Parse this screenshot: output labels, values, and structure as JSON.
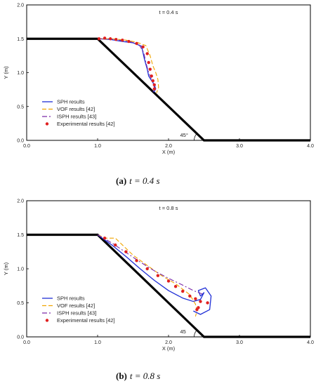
{
  "chart_data": [
    {
      "type": "line",
      "time_label": "t = 0.4 s",
      "caption": {
        "letter": "(a)",
        "text": "t = 0.4 s"
      },
      "xlabel": "X (m)",
      "ylabel": "Y (m)",
      "xlim": [
        0,
        4
      ],
      "ylim": [
        0,
        2
      ],
      "xticks": [
        "0.0",
        "1.0",
        "2.0",
        "3.0",
        "4.0"
      ],
      "yticks": [
        "0.0",
        "0.5",
        "1.0",
        "1.5",
        "2.0"
      ],
      "angle_label": "45°",
      "legend_position": "bottom-left",
      "wall": [
        [
          0,
          1.5
        ],
        [
          1.0,
          1.5
        ],
        [
          2.5,
          0.0
        ],
        [
          4.0,
          0.0
        ]
      ],
      "series": [
        {
          "name": "SPH results",
          "style": "solid",
          "color": "#1f2fd6",
          "x": [
            1.0,
            1.18,
            1.35,
            1.5,
            1.62,
            1.66,
            1.7,
            1.72,
            1.75,
            1.8,
            1.82,
            1.79
          ],
          "y": [
            1.5,
            1.49,
            1.46,
            1.44,
            1.39,
            1.2,
            1.05,
            0.95,
            0.9,
            0.82,
            0.76,
            0.71
          ]
        },
        {
          "name": "VOF results [42]",
          "style": "dash",
          "color": "#f0a500",
          "x": [
            1.02,
            1.2,
            1.4,
            1.55,
            1.68,
            1.74,
            1.78,
            1.82,
            1.85,
            1.86,
            1.83
          ],
          "y": [
            1.5,
            1.5,
            1.48,
            1.45,
            1.4,
            1.25,
            1.1,
            1.0,
            0.9,
            0.78,
            0.7
          ]
        },
        {
          "name": "ISPH results [43]",
          "style": "dashdot",
          "color": "#7a2aa8",
          "x": [
            1.0,
            1.15,
            1.3,
            1.45,
            1.58,
            1.65,
            1.68,
            1.72,
            1.77,
            1.8,
            1.78
          ],
          "y": [
            1.5,
            1.5,
            1.48,
            1.46,
            1.42,
            1.3,
            1.15,
            1.0,
            0.88,
            0.78,
            0.72
          ]
        },
        {
          "name": "Experimental results [42]",
          "style": "marker",
          "color": "#e02020",
          "x": [
            1.02,
            1.1,
            1.18,
            1.26,
            1.35,
            1.44,
            1.55,
            1.64,
            1.7,
            1.72,
            1.74,
            1.76,
            1.78,
            1.8,
            1.8
          ],
          "y": [
            1.5,
            1.51,
            1.5,
            1.49,
            1.48,
            1.46,
            1.43,
            1.38,
            1.28,
            1.15,
            1.05,
            0.95,
            0.88,
            0.82,
            0.76
          ]
        }
      ]
    },
    {
      "type": "line",
      "time_label": "t = 0.8 s",
      "caption": {
        "letter": "(b)",
        "text": "t = 0.8 s"
      },
      "xlabel": "X (m)",
      "ylabel": "Y (m)",
      "xlim": [
        0,
        4
      ],
      "ylim": [
        0,
        2
      ],
      "xticks": [
        "0.0",
        "1.0",
        "2.0",
        "3.0",
        "4.0"
      ],
      "yticks": [
        "0.0",
        "0.5",
        "1.0",
        "1.5",
        "2.0"
      ],
      "angle_label": "45",
      "legend_position": "bottom-left",
      "wall": [
        [
          0,
          1.5
        ],
        [
          1.0,
          1.5
        ],
        [
          2.5,
          0.0
        ],
        [
          4.0,
          0.0
        ]
      ],
      "series": [
        {
          "name": "SPH results",
          "style": "solid",
          "color": "#1f2fd6",
          "x": [
            1.0,
            1.2,
            1.4,
            1.6,
            1.8,
            2.0,
            2.2,
            2.35,
            2.45,
            2.5,
            2.45,
            2.42,
            2.52,
            2.6,
            2.58,
            2.45,
            2.35
          ],
          "y": [
            1.5,
            1.35,
            1.18,
            1.0,
            0.83,
            0.68,
            0.57,
            0.52,
            0.55,
            0.65,
            0.6,
            0.68,
            0.72,
            0.6,
            0.4,
            0.33,
            0.38
          ]
        },
        {
          "name": "VOF results [42]",
          "style": "dash",
          "color": "#f0a500",
          "x": [
            1.0,
            1.12,
            1.25,
            1.35,
            1.5,
            1.7,
            1.9,
            2.1,
            2.3,
            2.38,
            2.4,
            2.38
          ],
          "y": [
            1.5,
            1.45,
            1.45,
            1.35,
            1.2,
            1.05,
            0.9,
            0.78,
            0.62,
            0.48,
            0.38,
            0.3
          ]
        },
        {
          "name": "ISPH results [43]",
          "style": "dashdot",
          "color": "#7a2aa8",
          "x": [
            1.0,
            1.2,
            1.4,
            1.6,
            1.8,
            2.0,
            2.2,
            2.35,
            2.5
          ],
          "y": [
            1.5,
            1.38,
            1.24,
            1.1,
            0.97,
            0.86,
            0.76,
            0.68,
            0.62
          ]
        },
        {
          "name": "Experimental results [42]",
          "style": "marker",
          "color": "#e02020",
          "x": [
            1.1,
            1.25,
            1.4,
            1.55,
            1.7,
            1.85,
            2.0,
            2.1,
            2.2,
            2.3,
            2.38,
            2.45,
            2.55,
            2.4,
            2.42
          ],
          "y": [
            1.45,
            1.35,
            1.25,
            1.12,
            1.0,
            0.9,
            0.82,
            0.74,
            0.67,
            0.6,
            0.56,
            0.52,
            0.5,
            0.4,
            0.43
          ]
        }
      ]
    }
  ]
}
